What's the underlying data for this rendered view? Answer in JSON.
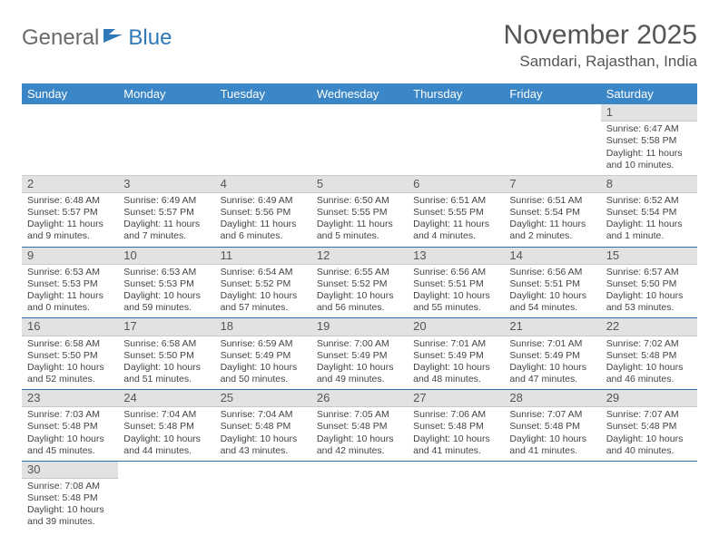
{
  "logo": {
    "text1": "General",
    "text2": "Blue"
  },
  "title": "November 2025",
  "location": "Samdari, Rajasthan, India",
  "colors": {
    "header_bg": "#3b86c6",
    "header_text": "#ffffff",
    "daynum_bg": "#e2e2e2",
    "row_border": "#2f6fa8",
    "logo_gray": "#6a6a6a",
    "logo_blue": "#2f79b9"
  },
  "weekdays": [
    "Sunday",
    "Monday",
    "Tuesday",
    "Wednesday",
    "Thursday",
    "Friday",
    "Saturday"
  ],
  "grid": [
    [
      null,
      null,
      null,
      null,
      null,
      null,
      {
        "n": "1",
        "sr": "Sunrise: 6:47 AM",
        "ss": "Sunset: 5:58 PM",
        "d1": "Daylight: 11 hours",
        "d2": "and 10 minutes."
      }
    ],
    [
      {
        "n": "2",
        "sr": "Sunrise: 6:48 AM",
        "ss": "Sunset: 5:57 PM",
        "d1": "Daylight: 11 hours",
        "d2": "and 9 minutes."
      },
      {
        "n": "3",
        "sr": "Sunrise: 6:49 AM",
        "ss": "Sunset: 5:57 PM",
        "d1": "Daylight: 11 hours",
        "d2": "and 7 minutes."
      },
      {
        "n": "4",
        "sr": "Sunrise: 6:49 AM",
        "ss": "Sunset: 5:56 PM",
        "d1": "Daylight: 11 hours",
        "d2": "and 6 minutes."
      },
      {
        "n": "5",
        "sr": "Sunrise: 6:50 AM",
        "ss": "Sunset: 5:55 PM",
        "d1": "Daylight: 11 hours",
        "d2": "and 5 minutes."
      },
      {
        "n": "6",
        "sr": "Sunrise: 6:51 AM",
        "ss": "Sunset: 5:55 PM",
        "d1": "Daylight: 11 hours",
        "d2": "and 4 minutes."
      },
      {
        "n": "7",
        "sr": "Sunrise: 6:51 AM",
        "ss": "Sunset: 5:54 PM",
        "d1": "Daylight: 11 hours",
        "d2": "and 2 minutes."
      },
      {
        "n": "8",
        "sr": "Sunrise: 6:52 AM",
        "ss": "Sunset: 5:54 PM",
        "d1": "Daylight: 11 hours",
        "d2": "and 1 minute."
      }
    ],
    [
      {
        "n": "9",
        "sr": "Sunrise: 6:53 AM",
        "ss": "Sunset: 5:53 PM",
        "d1": "Daylight: 11 hours",
        "d2": "and 0 minutes."
      },
      {
        "n": "10",
        "sr": "Sunrise: 6:53 AM",
        "ss": "Sunset: 5:53 PM",
        "d1": "Daylight: 10 hours",
        "d2": "and 59 minutes."
      },
      {
        "n": "11",
        "sr": "Sunrise: 6:54 AM",
        "ss": "Sunset: 5:52 PM",
        "d1": "Daylight: 10 hours",
        "d2": "and 57 minutes."
      },
      {
        "n": "12",
        "sr": "Sunrise: 6:55 AM",
        "ss": "Sunset: 5:52 PM",
        "d1": "Daylight: 10 hours",
        "d2": "and 56 minutes."
      },
      {
        "n": "13",
        "sr": "Sunrise: 6:56 AM",
        "ss": "Sunset: 5:51 PM",
        "d1": "Daylight: 10 hours",
        "d2": "and 55 minutes."
      },
      {
        "n": "14",
        "sr": "Sunrise: 6:56 AM",
        "ss": "Sunset: 5:51 PM",
        "d1": "Daylight: 10 hours",
        "d2": "and 54 minutes."
      },
      {
        "n": "15",
        "sr": "Sunrise: 6:57 AM",
        "ss": "Sunset: 5:50 PM",
        "d1": "Daylight: 10 hours",
        "d2": "and 53 minutes."
      }
    ],
    [
      {
        "n": "16",
        "sr": "Sunrise: 6:58 AM",
        "ss": "Sunset: 5:50 PM",
        "d1": "Daylight: 10 hours",
        "d2": "and 52 minutes."
      },
      {
        "n": "17",
        "sr": "Sunrise: 6:58 AM",
        "ss": "Sunset: 5:50 PM",
        "d1": "Daylight: 10 hours",
        "d2": "and 51 minutes."
      },
      {
        "n": "18",
        "sr": "Sunrise: 6:59 AM",
        "ss": "Sunset: 5:49 PM",
        "d1": "Daylight: 10 hours",
        "d2": "and 50 minutes."
      },
      {
        "n": "19",
        "sr": "Sunrise: 7:00 AM",
        "ss": "Sunset: 5:49 PM",
        "d1": "Daylight: 10 hours",
        "d2": "and 49 minutes."
      },
      {
        "n": "20",
        "sr": "Sunrise: 7:01 AM",
        "ss": "Sunset: 5:49 PM",
        "d1": "Daylight: 10 hours",
        "d2": "and 48 minutes."
      },
      {
        "n": "21",
        "sr": "Sunrise: 7:01 AM",
        "ss": "Sunset: 5:49 PM",
        "d1": "Daylight: 10 hours",
        "d2": "and 47 minutes."
      },
      {
        "n": "22",
        "sr": "Sunrise: 7:02 AM",
        "ss": "Sunset: 5:48 PM",
        "d1": "Daylight: 10 hours",
        "d2": "and 46 minutes."
      }
    ],
    [
      {
        "n": "23",
        "sr": "Sunrise: 7:03 AM",
        "ss": "Sunset: 5:48 PM",
        "d1": "Daylight: 10 hours",
        "d2": "and 45 minutes."
      },
      {
        "n": "24",
        "sr": "Sunrise: 7:04 AM",
        "ss": "Sunset: 5:48 PM",
        "d1": "Daylight: 10 hours",
        "d2": "and 44 minutes."
      },
      {
        "n": "25",
        "sr": "Sunrise: 7:04 AM",
        "ss": "Sunset: 5:48 PM",
        "d1": "Daylight: 10 hours",
        "d2": "and 43 minutes."
      },
      {
        "n": "26",
        "sr": "Sunrise: 7:05 AM",
        "ss": "Sunset: 5:48 PM",
        "d1": "Daylight: 10 hours",
        "d2": "and 42 minutes."
      },
      {
        "n": "27",
        "sr": "Sunrise: 7:06 AM",
        "ss": "Sunset: 5:48 PM",
        "d1": "Daylight: 10 hours",
        "d2": "and 41 minutes."
      },
      {
        "n": "28",
        "sr": "Sunrise: 7:07 AM",
        "ss": "Sunset: 5:48 PM",
        "d1": "Daylight: 10 hours",
        "d2": "and 41 minutes."
      },
      {
        "n": "29",
        "sr": "Sunrise: 7:07 AM",
        "ss": "Sunset: 5:48 PM",
        "d1": "Daylight: 10 hours",
        "d2": "and 40 minutes."
      }
    ],
    [
      {
        "n": "30",
        "sr": "Sunrise: 7:08 AM",
        "ss": "Sunset: 5:48 PM",
        "d1": "Daylight: 10 hours",
        "d2": "and 39 minutes."
      },
      null,
      null,
      null,
      null,
      null,
      null
    ]
  ]
}
